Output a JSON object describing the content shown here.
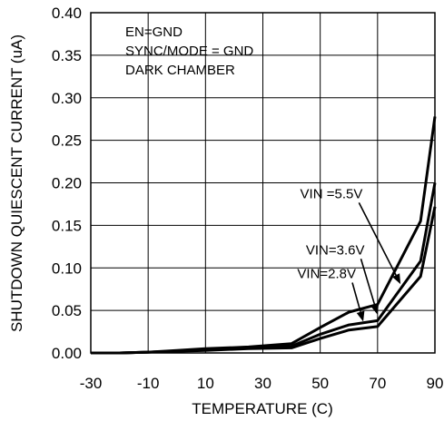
{
  "chart_data": {
    "type": "line",
    "xlabel": "TEMPERATURE (C)",
    "ylabel": "SHUTDOWN QUIESCENT CURRENT (uA)",
    "xlim": [
      -30,
      90
    ],
    "ylim": [
      0,
      0.4
    ],
    "x_ticks": [
      "-30",
      "-10",
      "10",
      "30",
      "50",
      "70",
      "90"
    ],
    "x_tick_values": [
      -30,
      -10,
      10,
      30,
      50,
      70,
      90
    ],
    "y_ticks": [
      "0.00",
      "0.05",
      "0.10",
      "0.15",
      "0.20",
      "0.25",
      "0.30",
      "0.35",
      "0.40"
    ],
    "y_tick_values": [
      0,
      0.05,
      0.1,
      0.15,
      0.2,
      0.25,
      0.3,
      0.35,
      0.4
    ],
    "grid": true,
    "annotations": [
      "EN=GND",
      "SYNC/MODE = GND",
      "DARK CHAMBER"
    ],
    "series": [
      {
        "name": "VIN =5.5V",
        "x": [
          -30,
          -20,
          -10,
          0,
          10,
          25,
          40,
          50,
          60,
          70,
          85,
          90
        ],
        "values": [
          0,
          0,
          0.001,
          0.003,
          0.005,
          0.007,
          0.011,
          0.03,
          0.048,
          0.057,
          0.155,
          0.278
        ]
      },
      {
        "name": "VIN=3.6V",
        "x": [
          -30,
          -20,
          -10,
          0,
          10,
          25,
          40,
          50,
          60,
          70,
          85,
          90
        ],
        "values": [
          0,
          0,
          0.001,
          0.002,
          0.004,
          0.006,
          0.008,
          0.022,
          0.033,
          0.038,
          0.108,
          0.2
        ]
      },
      {
        "name": "VIN=2.8V",
        "x": [
          -30,
          -20,
          -10,
          0,
          10,
          25,
          40,
          50,
          60,
          70,
          85,
          90
        ],
        "values": [
          0,
          0,
          0.001,
          0.002,
          0.003,
          0.005,
          0.006,
          0.017,
          0.027,
          0.031,
          0.09,
          0.172
        ]
      }
    ],
    "series_labels": [
      {
        "series": "VIN =5.5V",
        "text_at": [
          43,
          0.182
        ],
        "arrow_to": [
          78,
          0.081
        ]
      },
      {
        "series": "VIN=3.6V",
        "text_at": [
          45,
          0.116
        ],
        "arrow_to": [
          70,
          0.045
        ]
      },
      {
        "series": "VIN=2.8V",
        "text_at": [
          42,
          0.088
        ],
        "arrow_to": [
          65,
          0.037
        ]
      }
    ]
  }
}
